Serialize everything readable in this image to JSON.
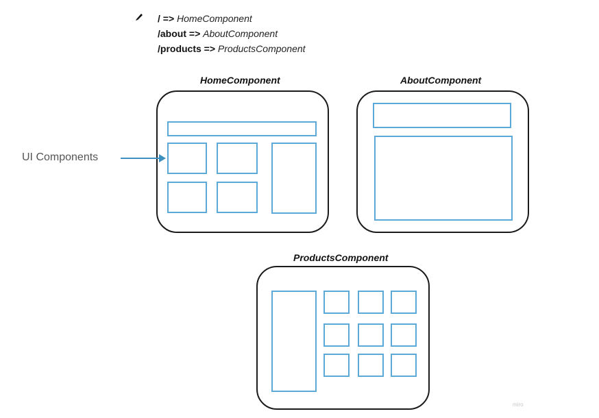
{
  "routes": [
    {
      "path": "/",
      "arrow": "=>",
      "component": "HomeComponent"
    },
    {
      "path": "/about",
      "arrow": "=>",
      "component": "AboutComponent"
    },
    {
      "path": "/products",
      "arrow": "=>",
      "component": "ProductsComponent"
    }
  ],
  "diagram": {
    "home_title": "HomeComponent",
    "about_title": "AboutComponent",
    "products_title": "ProductsComponent",
    "ui_components_label": "UI Components"
  },
  "watermark": "miro",
  "colors": {
    "frame_border": "#1a1a1a",
    "ui_box_border": "#5aa9d6",
    "arrow": "#3d8fc0"
  },
  "icons": {
    "pencil": "pencil-icon"
  }
}
